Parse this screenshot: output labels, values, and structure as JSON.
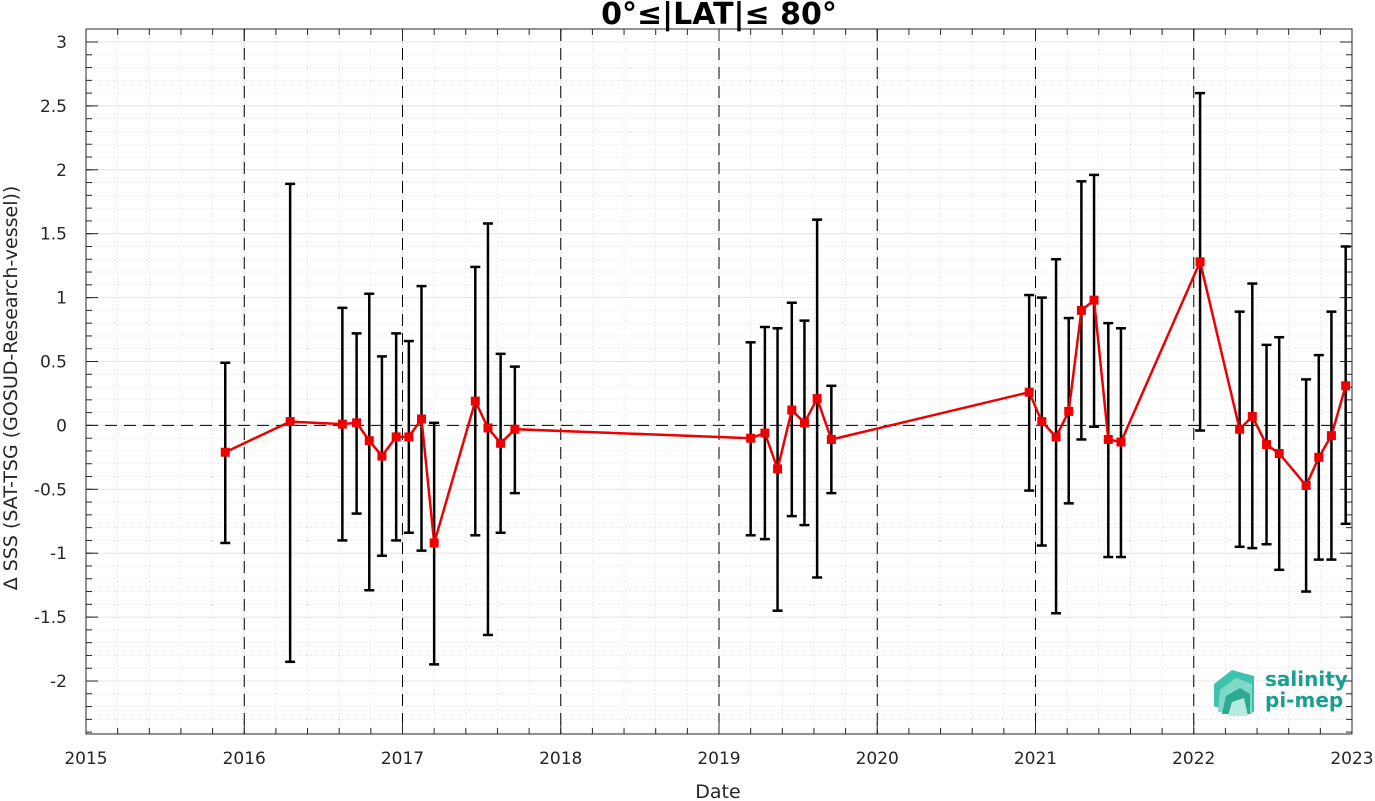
{
  "chart_data": {
    "type": "line",
    "title": "0°≤|LAT|≤ 80°",
    "xlabel": "Date",
    "ylabel": "Δ SSS (SAT-TSG (GOSUD-Research-vessel))",
    "xlim": [
      2015.0,
      2023.0
    ],
    "ylim": [
      -2.4,
      3.0
    ],
    "x_ticks": [
      "2015",
      "2016",
      "2017",
      "2018",
      "2019",
      "2020",
      "2021",
      "2022",
      "2023"
    ],
    "y_ticks": [
      "3",
      "2.5",
      "2",
      "1.5",
      "1",
      "0.5",
      "0",
      "-0.5",
      "-1",
      "-1.5",
      "-2"
    ],
    "grid": true,
    "year_separators": [
      "2016",
      "2017",
      "2018",
      "2019",
      "2020",
      "2021",
      "2022"
    ],
    "reference_line": 0,
    "series": [
      {
        "color": "#ee0000",
        "marker": "square",
        "errorbar_color": "#000000",
        "points": [
          {
            "x": 2015.88,
            "y": -0.21,
            "lo": -0.92,
            "hi": 0.49
          },
          {
            "x": 2016.29,
            "y": 0.03,
            "lo": -1.85,
            "hi": 1.89
          },
          {
            "x": 2016.62,
            "y": 0.01,
            "lo": -0.9,
            "hi": 0.92
          },
          {
            "x": 2016.71,
            "y": 0.02,
            "lo": -0.69,
            "hi": 0.72
          },
          {
            "x": 2016.79,
            "y": -0.12,
            "lo": -1.29,
            "hi": 1.03
          },
          {
            "x": 2016.87,
            "y": -0.24,
            "lo": -1.02,
            "hi": 0.54
          },
          {
            "x": 2016.96,
            "y": -0.09,
            "lo": -0.9,
            "hi": 0.72
          },
          {
            "x": 2017.04,
            "y": -0.09,
            "lo": -0.84,
            "hi": 0.66
          },
          {
            "x": 2017.12,
            "y": 0.05,
            "lo": -0.98,
            "hi": 1.09
          },
          {
            "x": 2017.2,
            "y": -0.92,
            "lo": -1.87,
            "hi": 0.02
          },
          {
            "x": 2017.46,
            "y": 0.19,
            "lo": -0.86,
            "hi": 1.24
          },
          {
            "x": 2017.54,
            "y": -0.02,
            "lo": -1.64,
            "hi": 1.58
          },
          {
            "x": 2017.62,
            "y": -0.14,
            "lo": -0.84,
            "hi": 0.56
          },
          {
            "x": 2017.71,
            "y": -0.03,
            "lo": -0.53,
            "hi": 0.46
          },
          {
            "x": 2019.2,
            "y": -0.1,
            "lo": -0.86,
            "hi": 0.65
          },
          {
            "x": 2019.29,
            "y": -0.06,
            "lo": -0.89,
            "hi": 0.77
          },
          {
            "x": 2019.37,
            "y": -0.34,
            "lo": -1.45,
            "hi": 0.76
          },
          {
            "x": 2019.46,
            "y": 0.12,
            "lo": -0.71,
            "hi": 0.96
          },
          {
            "x": 2019.54,
            "y": 0.02,
            "lo": -0.78,
            "hi": 0.82
          },
          {
            "x": 2019.62,
            "y": 0.21,
            "lo": -1.19,
            "hi": 1.61
          },
          {
            "x": 2019.71,
            "y": -0.11,
            "lo": -0.53,
            "hi": 0.31
          },
          {
            "x": 2020.96,
            "y": 0.26,
            "lo": -0.51,
            "hi": 1.02
          },
          {
            "x": 2021.04,
            "y": 0.03,
            "lo": -0.94,
            "hi": 1.0
          },
          {
            "x": 2021.13,
            "y": -0.09,
            "lo": -1.47,
            "hi": 1.3
          },
          {
            "x": 2021.21,
            "y": 0.11,
            "lo": -0.61,
            "hi": 0.84
          },
          {
            "x": 2021.29,
            "y": 0.9,
            "lo": -0.11,
            "hi": 1.91
          },
          {
            "x": 2021.37,
            "y": 0.98,
            "lo": -0.01,
            "hi": 1.96
          },
          {
            "x": 2021.46,
            "y": -0.11,
            "lo": -1.03,
            "hi": 0.8
          },
          {
            "x": 2021.54,
            "y": -0.13,
            "lo": -1.03,
            "hi": 0.76
          },
          {
            "x": 2022.04,
            "y": 1.28,
            "lo": -0.04,
            "hi": 2.6
          },
          {
            "x": 2022.29,
            "y": -0.03,
            "lo": -0.95,
            "hi": 0.89
          },
          {
            "x": 2022.37,
            "y": 0.07,
            "lo": -0.96,
            "hi": 1.11
          },
          {
            "x": 2022.46,
            "y": -0.15,
            "lo": -0.93,
            "hi": 0.63
          },
          {
            "x": 2022.54,
            "y": -0.22,
            "lo": -1.13,
            "hi": 0.69
          },
          {
            "x": 2022.71,
            "y": -0.47,
            "lo": -1.3,
            "hi": 0.36
          },
          {
            "x": 2022.79,
            "y": -0.25,
            "lo": -1.05,
            "hi": 0.55
          },
          {
            "x": 2022.87,
            "y": -0.08,
            "lo": -1.05,
            "hi": 0.89
          },
          {
            "x": 2022.96,
            "y": 0.31,
            "lo": -0.77,
            "hi": 1.4
          }
        ]
      }
    ]
  },
  "logo": {
    "line1": "salinity",
    "line2": "pi-mep",
    "color": "#1a9e8f"
  }
}
